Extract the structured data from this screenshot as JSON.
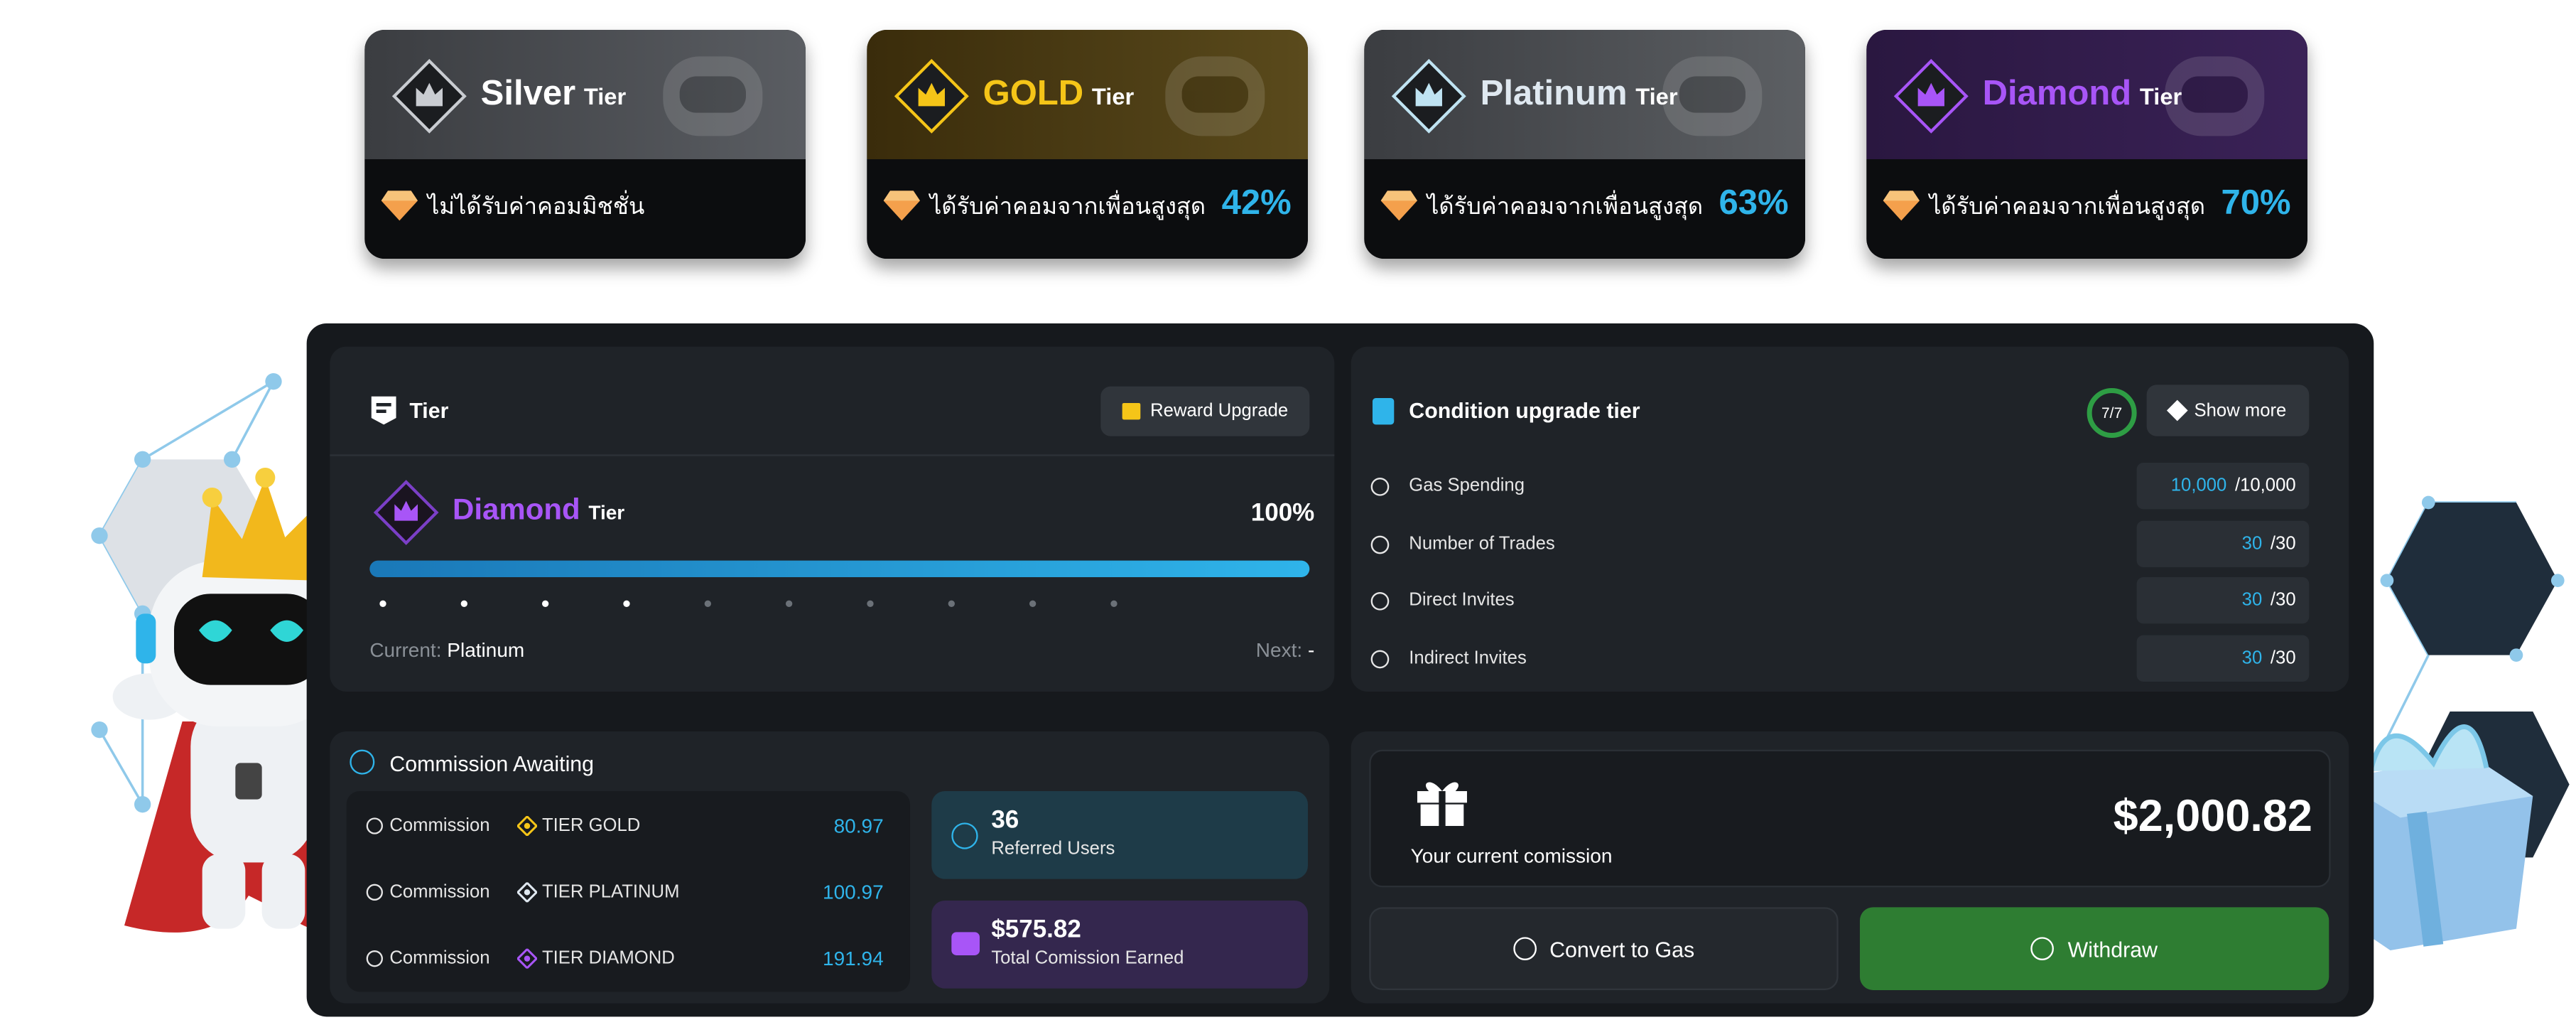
{
  "tier_cards": [
    {
      "name": "Silver",
      "suffix": "Tier",
      "description": "ไม่ได้รับค่าคอมมิชชั่น",
      "percent": "",
      "name_color": "#ffffff",
      "accent": "#c9ccd1"
    },
    {
      "name": "GOLD",
      "suffix": "Tier",
      "description": "ได้รับค่าคอมจากเพื่อนสูงสุด",
      "percent": "42%",
      "name_color": "#f5c518",
      "accent": "#f5c518"
    },
    {
      "name": "Platinum",
      "suffix": "Tier",
      "description": "ได้รับค่าคอมจากเพื่อนสูงสุด",
      "percent": "63%",
      "name_color": "#dfe8f0",
      "accent": "#bfe3f2"
    },
    {
      "name": "Diamond",
      "suffix": "Tier",
      "description": "ได้รับค่าคอมจากเพื่อนสูงสุด",
      "percent": "70%",
      "name_color": "#a855f7",
      "accent": "#a855f7"
    }
  ],
  "tier_panel": {
    "title": "Tier",
    "reward_button": "Reward Upgrade",
    "current_tier_name": "Diamond",
    "current_tier_suffix": "Tier",
    "progress_label": "100%",
    "progress": 1.0,
    "current_label": "Current:",
    "current_value": "Platinum",
    "next_label": "Next:",
    "next_value": "-"
  },
  "condition_panel": {
    "title": "Condition upgrade tier",
    "badge": "7/7",
    "show_more": "Show more",
    "rows": [
      {
        "label": "Gas Spending",
        "current": "10,000",
        "target": "/10,000"
      },
      {
        "label": "Number of Trades",
        "current": "30",
        "target": "/30"
      },
      {
        "label": "Direct Invites",
        "current": "30",
        "target": "/30"
      },
      {
        "label": "Indirect Invites",
        "current": "30",
        "target": "/30"
      }
    ]
  },
  "commission_panel": {
    "title": "Commission Awaiting",
    "rows": [
      {
        "label": "Commission",
        "tier": "TIER GOLD",
        "value": "80.97",
        "color": "#f5c518"
      },
      {
        "label": "Commission",
        "tier": "TIER PLATINUM",
        "value": "100.97",
        "color": "#dfe8f0"
      },
      {
        "label": "Commission",
        "tier": "TIER DIAMOND",
        "value": "191.94",
        "color": "#a855f7"
      }
    ],
    "referred_count": "36",
    "referred_label": "Referred Users",
    "earned_amount": "$575.82",
    "earned_label": "Total Comission Earned"
  },
  "wallet_panel": {
    "amount": "$2,000.82",
    "label": "Your current comission",
    "convert_button": "Convert to Gas",
    "withdraw_button": "Withdraw"
  },
  "colors": {
    "accent_blue": "#2fb4ea",
    "withdraw_green": "#2e7d32",
    "diamond_purple": "#a855f7",
    "panel_bg": "#16191d",
    "card_bg": "#1f2328"
  }
}
